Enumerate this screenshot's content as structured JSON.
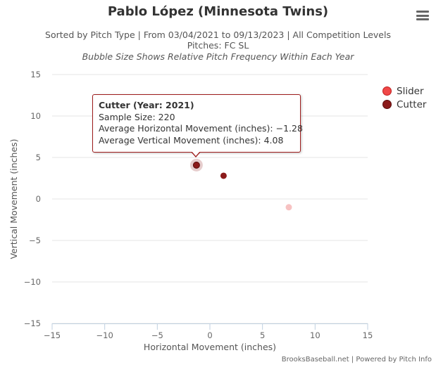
{
  "chart_data": {
    "type": "scatter",
    "title": "Pablo López (Minnesota Twins)",
    "subtitle_lines": [
      "Sorted by Pitch Type | From 03/04/2021 to 09/13/2023 | All Competition Levels",
      "Pitches: FC SL",
      "Bubble Size Shows Relative Pitch Frequency Within Each Year"
    ],
    "xlabel": "Horizontal Movement (inches)",
    "ylabel": "Vertical Movement (inches)",
    "xlim": [
      -15,
      15
    ],
    "ylim": [
      -15,
      15
    ],
    "x_ticks": [
      "−15",
      "−10",
      "−5",
      "0",
      "5",
      "10",
      "15"
    ],
    "y_ticks": [
      "15",
      "10",
      "5",
      "0",
      "−5",
      "−10",
      "−15"
    ],
    "grid": "horizontal",
    "legend_position": "top-right",
    "series": [
      {
        "name": "Slider",
        "color": "#f04848",
        "points": [
          {
            "x": 7.5,
            "y": -1.0
          }
        ]
      },
      {
        "name": "Cutter",
        "color": "#8b1a1a",
        "points": [
          {
            "x": -1.28,
            "y": 4.08
          },
          {
            "x": 1.3,
            "y": 2.8
          }
        ]
      }
    ],
    "tooltip": {
      "title": "Cutter (Year: 2021)",
      "lines": [
        "Sample Size: 220",
        "Average Horizontal Movement (inches): −1.28",
        "Average Vertical Movement (inches): 4.08"
      ]
    },
    "credits": "BrooksBaseball.net | Powered by Pitch Info"
  }
}
